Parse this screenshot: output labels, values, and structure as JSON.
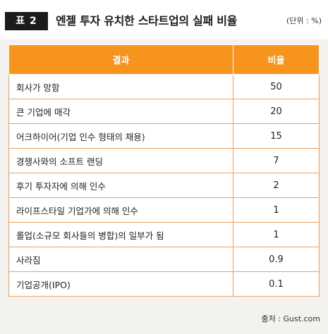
{
  "header": {
    "badge": "표 2",
    "title": "엔젤 투자 유치한 스타트업의 실패 비율",
    "unit": "(단위 : %)"
  },
  "table": {
    "columns": [
      "결과",
      "비율"
    ],
    "rows": [
      {
        "result": "회사가 망함",
        "ratio": "50"
      },
      {
        "result": "큰 기업에 매각",
        "ratio": "20"
      },
      {
        "result": "어크하이어(기업 인수 형태의 채용)",
        "ratio": "15"
      },
      {
        "result": "경쟁사와의 소프트 랜딩",
        "ratio": "7"
      },
      {
        "result": "후기 투자자에 의해 인수",
        "ratio": "2"
      },
      {
        "result": "라이프스타일 기업가에 의해 인수",
        "ratio": "1"
      },
      {
        "result": "롤업(소규모 회사들의 병합)의 일부가 됨",
        "ratio": "1"
      },
      {
        "result": "사라짐",
        "ratio": "0.9"
      },
      {
        "result": "기업공개(IPO)",
        "ratio": "0.1"
      }
    ]
  },
  "footer": {
    "source": "출처 : Gust.com"
  },
  "colors": {
    "header_bg": "#f7941e",
    "badge_bg": "#1b1b1b",
    "page_bg": "#f4f2ee"
  }
}
